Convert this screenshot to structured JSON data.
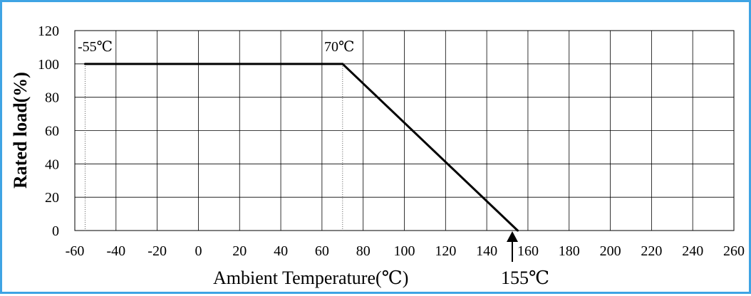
{
  "chart_data": {
    "type": "line",
    "xlabel": "Ambient Temperature(℃)",
    "ylabel": "Rated load(%)",
    "xlim": [
      -60,
      260
    ],
    "ylim": [
      0,
      120
    ],
    "x_ticks": [
      "-60",
      "-40",
      "-20",
      "0",
      "20",
      "40",
      "60",
      "80",
      "100",
      "120",
      "140",
      "160",
      "180",
      "200",
      "220",
      "240",
      "260"
    ],
    "y_ticks": [
      "0",
      "20",
      "40",
      "60",
      "80",
      "100",
      "120"
    ],
    "grid": true,
    "series": [
      {
        "x": [
          -55,
          70,
          155
        ],
        "y": [
          100,
          100,
          0
        ]
      }
    ],
    "annotations": {
      "start_label": "-55℃",
      "knee_label": "70℃",
      "end_label": "155℃"
    },
    "colors": {
      "border": "#3fa4e4",
      "line": "#000000",
      "grid": "#000000"
    }
  }
}
